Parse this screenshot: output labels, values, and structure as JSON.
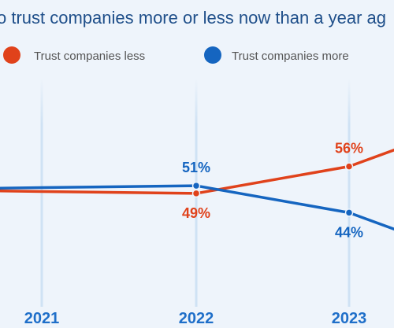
{
  "title": "o trust companies more or less now than a year ag",
  "legend": [
    {
      "label": "Trust companies less",
      "color": "#e0421b",
      "icon": "circle-dot-icon"
    },
    {
      "label": "Trust companies more",
      "color": "#1565c0",
      "icon": "circle-dot-icon"
    }
  ],
  "chart_data": {
    "type": "line",
    "title": "o trust companies more or less now than a year ag",
    "x": [
      "2021",
      "2022",
      "2023"
    ],
    "series": [
      {
        "name": "Trust companies less",
        "color": "#e0421b",
        "values": [
          49.5,
          49,
          56
        ],
        "labels": [
          "",
          "49%",
          "56%"
        ],
        "end_value": 61
      },
      {
        "name": "Trust companies more",
        "color": "#1565c0",
        "values": [
          50.5,
          51,
          44
        ],
        "labels": [
          "",
          "51%",
          "44%"
        ],
        "end_value": 39
      }
    ],
    "xlabel": "",
    "ylabel": "",
    "grid": "vertical",
    "legend_position": "top-left"
  }
}
